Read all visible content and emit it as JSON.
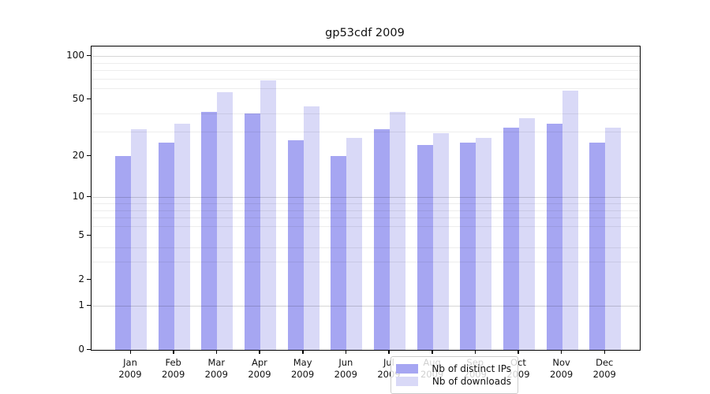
{
  "title": "gp53cdf 2009",
  "chart_data": {
    "type": "bar",
    "title": "gp53cdf 2009",
    "categories": [
      "Jan",
      "Feb",
      "Mar",
      "Apr",
      "May",
      "Jun",
      "Jul",
      "Aug",
      "Sep",
      "Oct",
      "Nov",
      "Dec"
    ],
    "category_year": "2009",
    "series": [
      {
        "name": "Nb of distinct IPs",
        "color": "#a6a6f2",
        "values": [
          20,
          25,
          41,
          40,
          26,
          20,
          31,
          24,
          25,
          32,
          34,
          25
        ]
      },
      {
        "name": "Nb of downloads",
        "color": "#d9d9f7",
        "values": [
          31,
          34,
          56,
          68,
          45,
          27,
          41,
          29,
          27,
          37,
          58,
          32
        ]
      }
    ],
    "yscale": "log1p",
    "y_ticks": [
      0,
      1,
      2,
      5,
      10,
      20,
      50,
      100
    ],
    "gridlines_minor": [
      3,
      4,
      6,
      7,
      8,
      9,
      30,
      40,
      60,
      70,
      80,
      90
    ],
    "gridlines_decade": [
      1,
      10,
      100
    ],
    "ylim": [
      0,
      118
    ],
    "legend_position": "lower center inside",
    "grid": true
  }
}
